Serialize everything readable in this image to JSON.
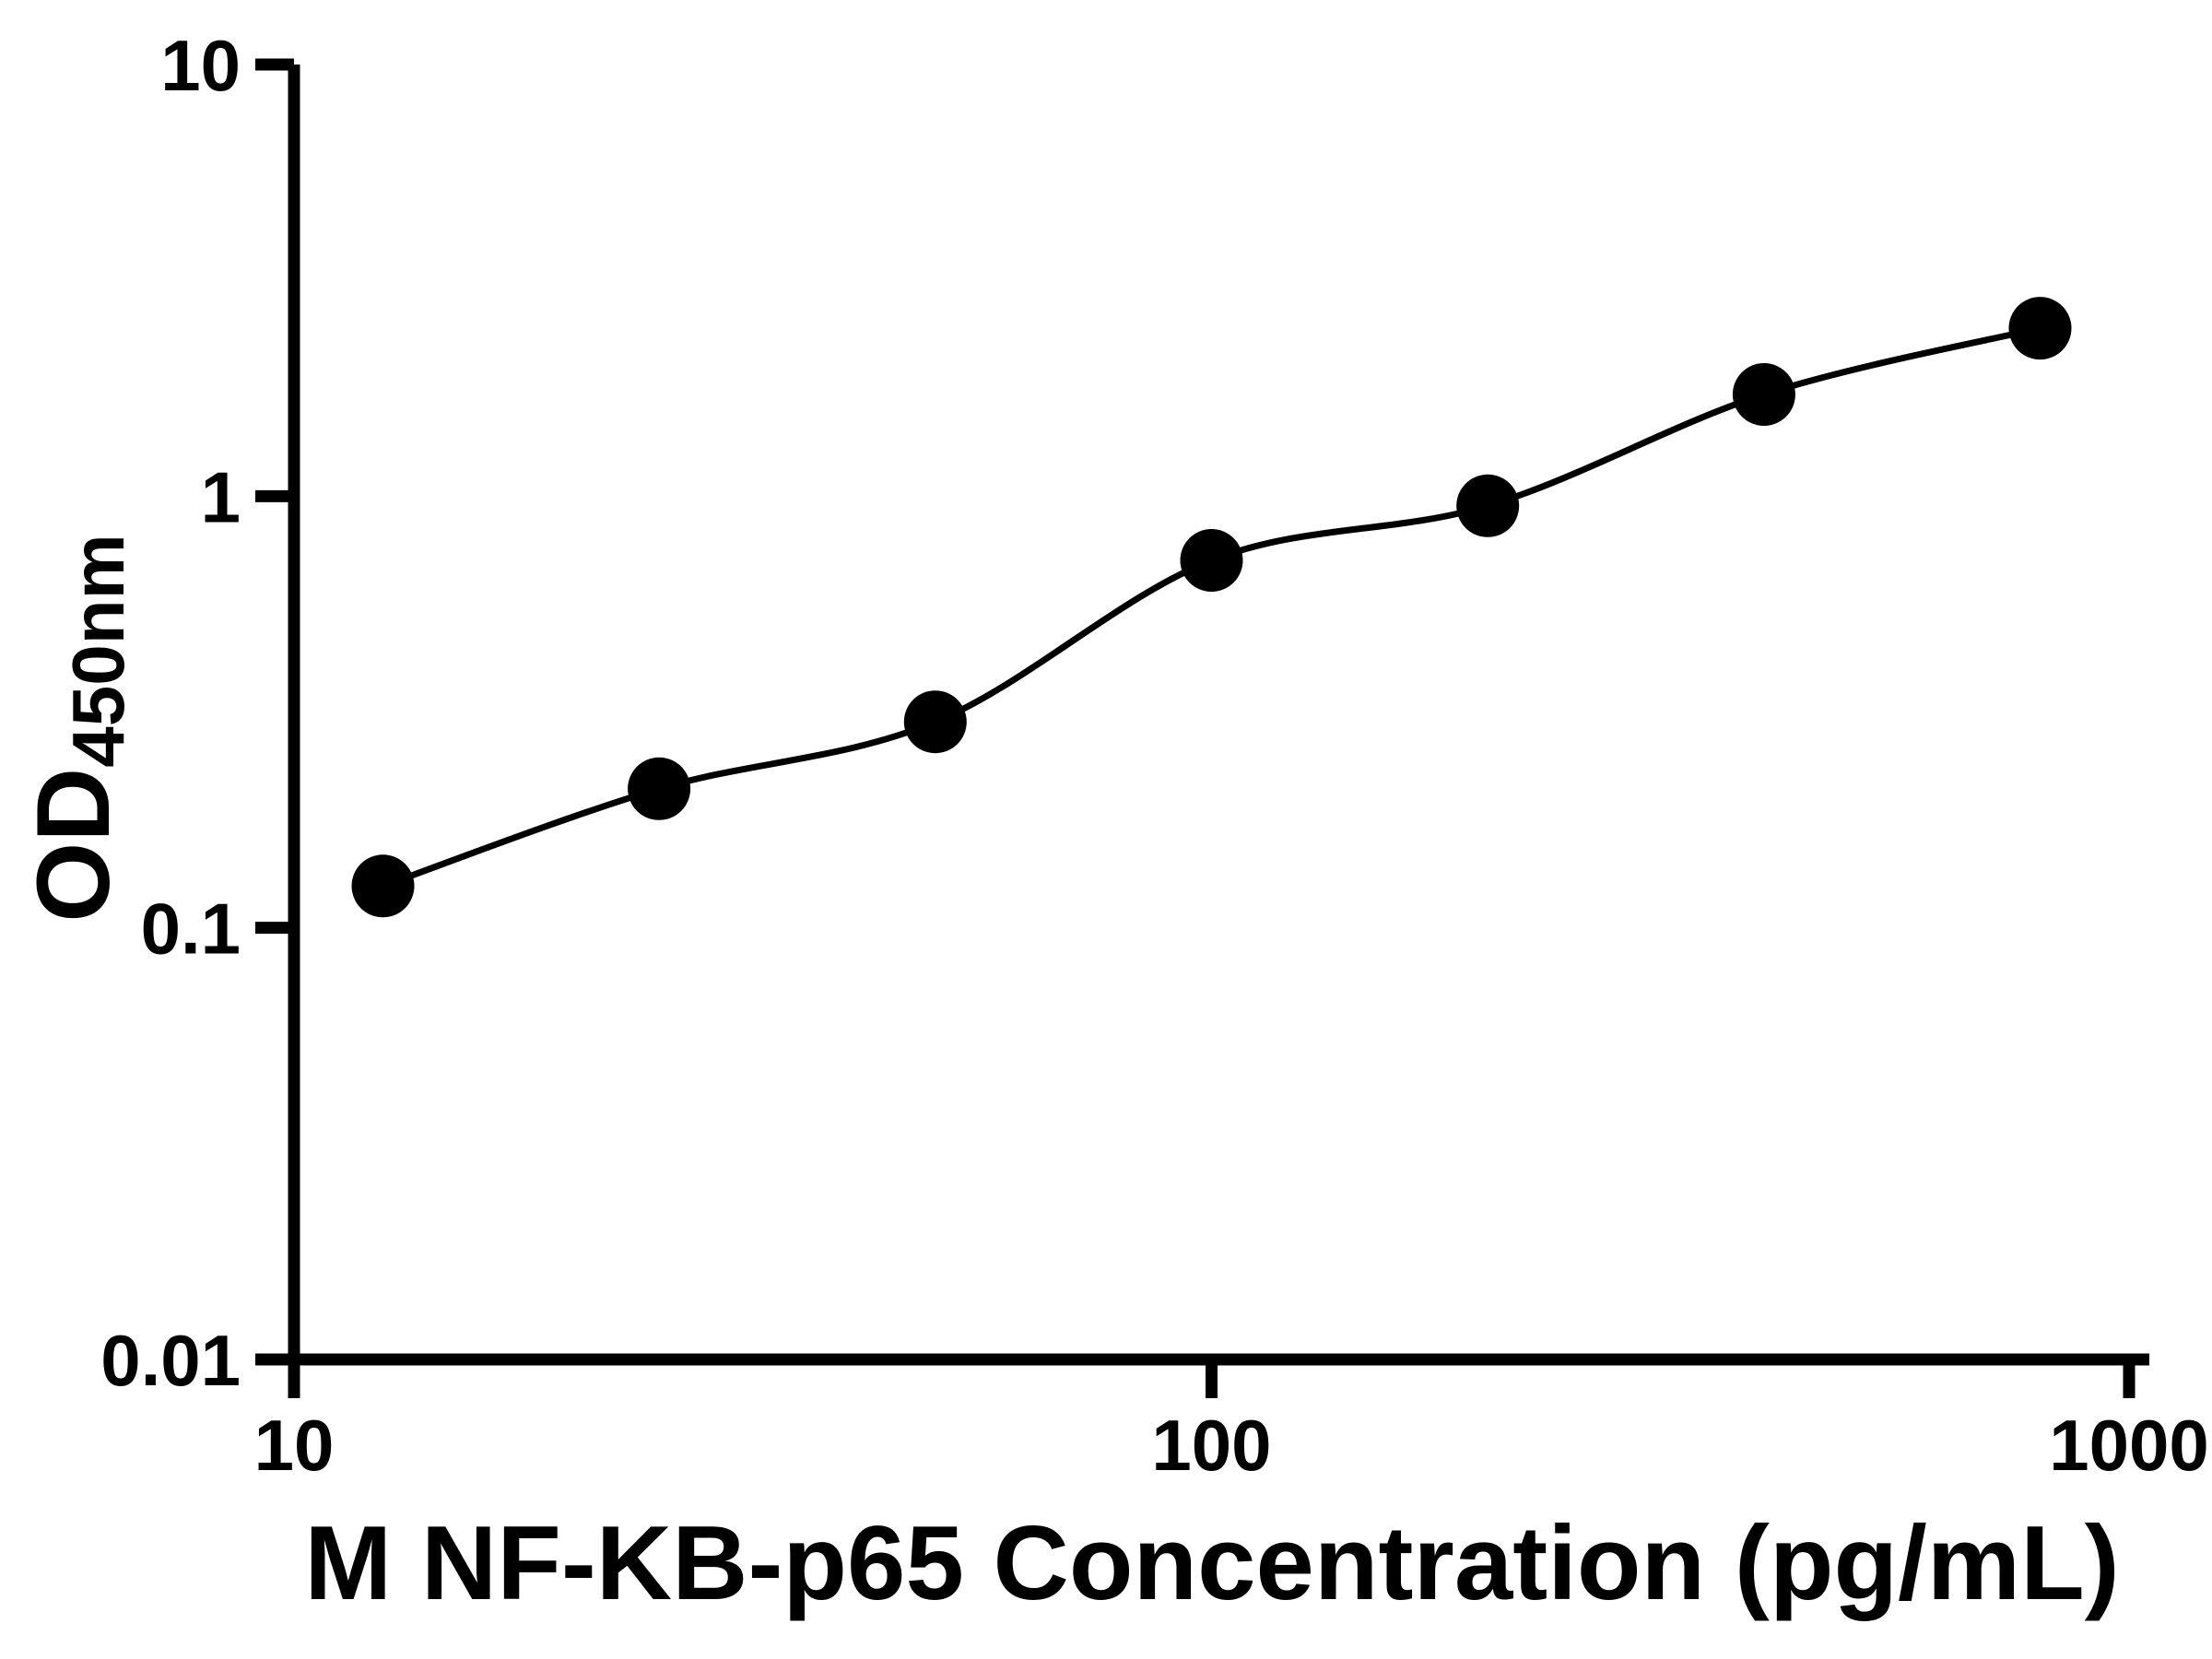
{
  "chart_data": {
    "type": "scatter",
    "x": [
      12.5,
      25,
      50,
      100,
      200,
      400,
      800
    ],
    "y": [
      0.125,
      0.21,
      0.3,
      0.71,
      0.95,
      1.72,
      2.45
    ],
    "series": [
      {
        "name": "standard-curve",
        "marker": "filled-circle",
        "line": "smooth-fit-curve",
        "points": [
          {
            "x": 12.5,
            "y": 0.125
          },
          {
            "x": 25,
            "y": 0.21
          },
          {
            "x": 50,
            "y": 0.3
          },
          {
            "x": 100,
            "y": 0.71
          },
          {
            "x": 200,
            "y": 0.95
          },
          {
            "x": 400,
            "y": 1.72
          },
          {
            "x": 800,
            "y": 2.45
          }
        ]
      }
    ],
    "title": "",
    "xlabel": "M NF-KB-p65 Concentration (pg/mL)",
    "ylabel": "OD",
    "ylabel_subscript": "450nm",
    "xscale": "log",
    "yscale": "log",
    "xlim": [
      10,
      1000
    ],
    "ylim": [
      0.01,
      10
    ],
    "xticks": {
      "values": [
        10,
        100,
        1000
      ],
      "labels": [
        "10",
        "100",
        "1000"
      ]
    },
    "yticks": {
      "values": [
        0.01,
        0.1,
        1,
        10
      ],
      "labels": [
        "0.01",
        "0.1",
        "1",
        "10"
      ]
    },
    "grid": false,
    "legend": null,
    "colors": {
      "marker": "#000000",
      "line": "#000000",
      "axis": "#000000",
      "background": "#ffffff"
    }
  }
}
